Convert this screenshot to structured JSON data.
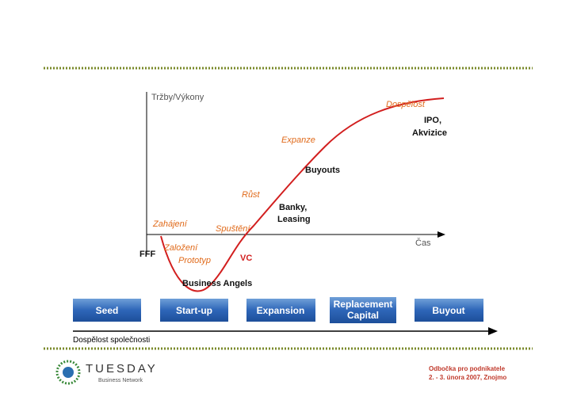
{
  "axes": {
    "y_label": "Tržby/Výkony",
    "x_label": "Čas"
  },
  "phases": [
    "Zahájení",
    "Spuštění",
    "Růst",
    "Expanze",
    "Dospělost"
  ],
  "sub_phases": [
    "Založení",
    "Prototyp"
  ],
  "financing": [
    "FFF",
    "Business Angels",
    "VC",
    "Banky,",
    "Leasing",
    "Buyouts",
    "IPO,",
    "Akvizice"
  ],
  "stages": [
    "Seed",
    "Start-up",
    "Expansion",
    "Replacement",
    "Capital",
    "Buyout"
  ],
  "arrow_label": "Dospělost společnosti",
  "footer": {
    "logo": "TUESDAY",
    "logo_sub": "Business Network",
    "line1": "Odbočka pro podnikatele",
    "line2": "2. - 3. února 2007, Znojmo"
  }
}
